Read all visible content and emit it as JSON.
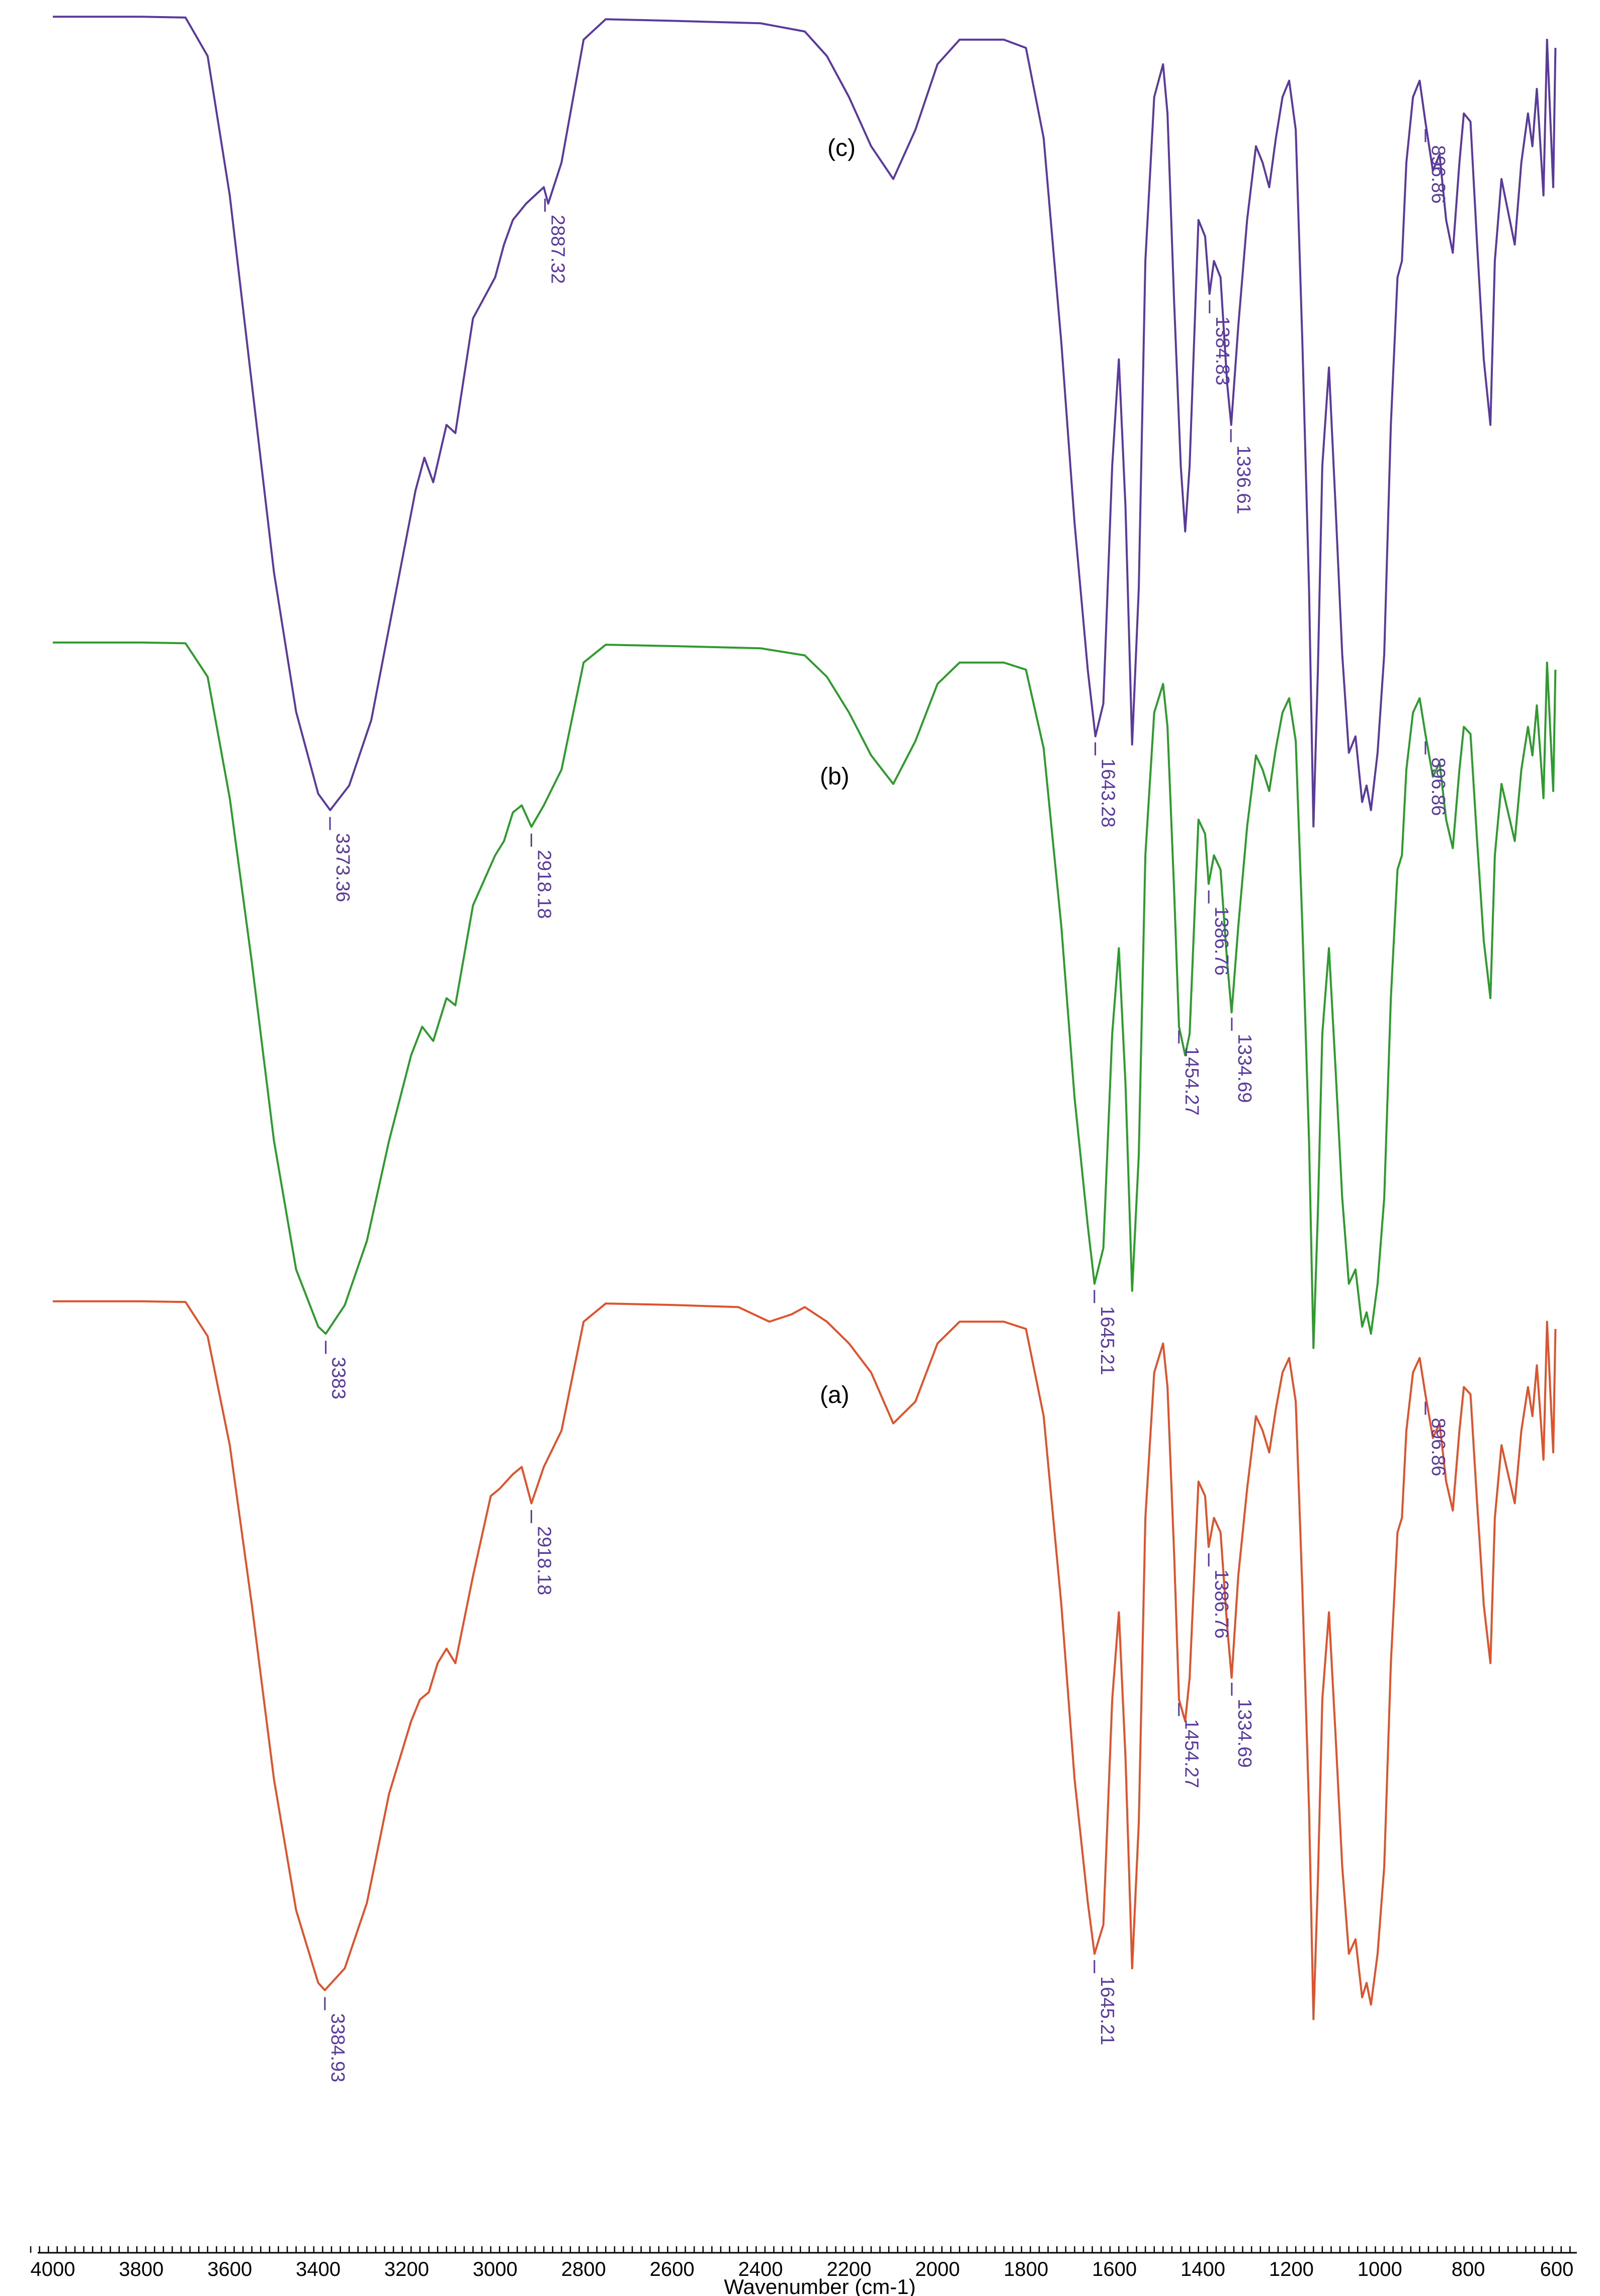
{
  "chart_data": {
    "type": "line",
    "title": "",
    "xlabel": "Wavenumber (cm-1)",
    "ylabel": "",
    "xlim": [
      4000,
      600
    ],
    "x_reversed": true,
    "x_ticks": [
      4000,
      3800,
      3600,
      3400,
      3200,
      3000,
      2800,
      2600,
      2400,
      2200,
      2000,
      1800,
      1600,
      1400,
      1200,
      1000,
      800,
      600
    ],
    "grid": false,
    "legend": "none",
    "series": [
      {
        "name": "(c)",
        "color": "#5b3a9e",
        "x": [
          4000,
          3900,
          3800,
          3700,
          3650,
          3600,
          3550,
          3500,
          3450,
          3400,
          3373,
          3330,
          3280,
          3230,
          3180,
          3160,
          3140,
          3110,
          3090,
          3050,
          3000,
          2980,
          2960,
          2930,
          2890,
          2880,
          2850,
          2830,
          2800,
          2750,
          2600,
          2400,
          2300,
          2250,
          2200,
          2150,
          2100,
          2050,
          2000,
          1950,
          1900,
          1850,
          1800,
          1760,
          1720,
          1690,
          1660,
          1643,
          1625,
          1605,
          1590,
          1575,
          1560,
          1545,
          1530,
          1510,
          1490,
          1480,
          1465,
          1450,
          1440,
          1430,
          1410,
          1395,
          1385,
          1375,
          1360,
          1345,
          1336,
          1320,
          1300,
          1280,
          1265,
          1250,
          1235,
          1220,
          1205,
          1190,
          1175,
          1160,
          1150,
          1140,
          1130,
          1115,
          1100,
          1085,
          1070,
          1055,
          1040,
          1030,
          1020,
          1005,
          990,
          975,
          960,
          950,
          940,
          925,
          910,
          897,
          880,
          865,
          850,
          835,
          820,
          810,
          795,
          780,
          765,
          750,
          740,
          725,
          710,
          695,
          680,
          665,
          655,
          645,
          638,
          630,
          622,
          615,
          608,
          603
        ],
        "y": [
          99.8,
          99.8,
          99.8,
          99.7,
          95,
          78,
          55,
          32,
          15,
          5,
          3,
          6,
          14,
          28,
          42,
          46,
          43,
          50,
          49,
          63,
          68,
          72,
          75,
          77,
          79,
          77,
          82,
          88,
          97,
          99.5,
          99.3,
          99,
          98,
          95,
          90,
          84,
          80,
          86,
          94,
          97,
          97,
          97,
          96,
          85,
          60,
          38,
          20,
          12,
          16,
          45,
          58,
          40,
          11,
          30,
          70,
          90,
          94,
          88,
          65,
          45,
          37,
          45,
          75,
          73,
          66,
          70,
          68,
          55,
          50,
          62,
          75,
          84,
          82,
          79,
          85,
          90,
          92,
          86,
          60,
          30,
          1,
          20,
          45,
          57,
          40,
          22,
          10,
          12,
          4,
          6,
          3,
          10,
          22,
          50,
          68,
          70,
          82,
          90,
          92,
          87,
          81,
          83,
          75,
          71,
          82,
          88,
          87,
          72,
          58,
          50,
          70,
          80,
          76,
          72,
          82,
          88,
          84,
          91,
          85,
          78,
          97,
          88,
          79,
          96
        ]
      },
      {
        "name": "(b)",
        "color": "#2e9b2e",
        "x": [
          4000,
          3900,
          3800,
          3700,
          3650,
          3600,
          3550,
          3500,
          3450,
          3400,
          3383,
          3340,
          3290,
          3240,
          3190,
          3165,
          3140,
          3110,
          3090,
          3050,
          3000,
          2980,
          2960,
          2940,
          2918,
          2890,
          2850,
          2830,
          2800,
          2750,
          2600,
          2400,
          2300,
          2250,
          2200,
          2150,
          2100,
          2050,
          2000,
          1950,
          1900,
          1850,
          1800,
          1760,
          1720,
          1690,
          1660,
          1645,
          1625,
          1605,
          1590,
          1575,
          1560,
          1545,
          1530,
          1510,
          1490,
          1480,
          1465,
          1454,
          1440,
          1430,
          1410,
          1395,
          1387,
          1375,
          1360,
          1345,
          1335,
          1320,
          1300,
          1280,
          1265,
          1250,
          1235,
          1220,
          1205,
          1190,
          1175,
          1160,
          1150,
          1140,
          1130,
          1115,
          1100,
          1085,
          1070,
          1055,
          1040,
          1030,
          1020,
          1005,
          990,
          975,
          960,
          950,
          940,
          925,
          910,
          897,
          880,
          865,
          850,
          835,
          820,
          810,
          795,
          780,
          765,
          750,
          740,
          725,
          710,
          695,
          680,
          665,
          655,
          645,
          638,
          630,
          622,
          615,
          608,
          603
        ],
        "y": [
          99.8,
          99.8,
          99.8,
          99.7,
          95,
          78,
          55,
          30,
          12,
          4,
          3,
          7,
          16,
          30,
          42,
          46,
          44,
          50,
          49,
          63,
          70,
          72,
          76,
          77,
          74,
          77,
          82,
          88,
          97,
          99.5,
          99.3,
          99,
          98,
          95,
          90,
          84,
          80,
          86,
          94,
          97,
          97,
          97,
          96,
          85,
          60,
          36,
          18,
          10,
          15,
          45,
          57,
          38,
          9,
          28,
          70,
          90,
          94,
          88,
          65,
          46,
          42,
          45,
          75,
          73,
          66,
          70,
          68,
          55,
          48,
          60,
          74,
          84,
          82,
          79,
          85,
          90,
          92,
          86,
          60,
          30,
          1,
          20,
          45,
          57,
          40,
          22,
          10,
          12,
          4,
          6,
          3,
          10,
          22,
          50,
          68,
          70,
          82,
          90,
          92,
          87,
          81,
          83,
          75,
          71,
          82,
          88,
          87,
          72,
          58,
          50,
          70,
          80,
          76,
          72,
          82,
          88,
          84,
          91,
          85,
          78,
          97,
          88,
          79,
          96
        ]
      },
      {
        "name": "(a)",
        "color": "#e0522c",
        "x": [
          4000,
          3900,
          3800,
          3700,
          3650,
          3600,
          3550,
          3500,
          3450,
          3400,
          3385,
          3340,
          3290,
          3240,
          3190,
          3170,
          3150,
          3130,
          3110,
          3090,
          3050,
          3010,
          2990,
          2960,
          2940,
          2918,
          2890,
          2850,
          2830,
          2800,
          2750,
          2600,
          2450,
          2380,
          2330,
          2300,
          2250,
          2200,
          2150,
          2100,
          2050,
          2000,
          1950,
          1900,
          1850,
          1800,
          1760,
          1720,
          1690,
          1660,
          1645,
          1625,
          1605,
          1590,
          1575,
          1560,
          1545,
          1530,
          1510,
          1490,
          1480,
          1465,
          1454,
          1440,
          1430,
          1410,
          1395,
          1387,
          1375,
          1360,
          1345,
          1335,
          1320,
          1300,
          1280,
          1265,
          1250,
          1235,
          1220,
          1205,
          1190,
          1175,
          1160,
          1150,
          1140,
          1130,
          1115,
          1100,
          1085,
          1070,
          1055,
          1040,
          1030,
          1020,
          1005,
          990,
          975,
          960,
          950,
          940,
          925,
          910,
          897,
          880,
          865,
          850,
          835,
          820,
          810,
          795,
          780,
          765,
          750,
          740,
          725,
          710,
          695,
          680,
          665,
          655,
          645,
          638,
          630,
          622,
          615,
          608,
          603
        ],
        "y": [
          99.8,
          99.8,
          99.8,
          99.7,
          95,
          80,
          58,
          34,
          16,
          6,
          5,
          8,
          17,
          32,
          42,
          45,
          46,
          50,
          52,
          50,
          62,
          73,
          74,
          76,
          77,
          72,
          77,
          82,
          88,
          97,
          99.5,
          99.3,
          99,
          97,
          98,
          99,
          97,
          94,
          90,
          83,
          86,
          94,
          97,
          97,
          97,
          96,
          84,
          58,
          34,
          17,
          10,
          14,
          45,
          57,
          37,
          8,
          28,
          70,
          90,
          94,
          88,
          65,
          45,
          42,
          48,
          75,
          73,
          66,
          70,
          68,
          55,
          48,
          62,
          74,
          84,
          82,
          79,
          85,
          90,
          92,
          86,
          60,
          30,
          1,
          20,
          45,
          57,
          40,
          22,
          10,
          12,
          4,
          6,
          3,
          10,
          22,
          50,
          68,
          70,
          82,
          90,
          92,
          87,
          81,
          83,
          75,
          71,
          82,
          88,
          87,
          72,
          58,
          50,
          70,
          80,
          76,
          72,
          82,
          88,
          84,
          91,
          85,
          78,
          97,
          88,
          79,
          96
        ]
      }
    ],
    "annotations": [
      {
        "series": "(c)",
        "x": 2887.32,
        "text": "2887.32"
      },
      {
        "series": "(c)",
        "x": 1384.83,
        "text": "1384.83"
      },
      {
        "series": "(c)",
        "x": 1336.61,
        "text": "1336.61"
      },
      {
        "series": "(c)",
        "x": 896.86,
        "text": "896.86"
      },
      {
        "series": "(c)",
        "x": 1643.28,
        "text": "1643.28"
      },
      {
        "series": "(c)",
        "x": 3373.36,
        "text": "3373.36"
      },
      {
        "series": "(b)",
        "x": 2918.18,
        "text": "2918.18"
      },
      {
        "series": "(b)",
        "x": 1386.76,
        "text": "1386.76"
      },
      {
        "series": "(b)",
        "x": 1334.69,
        "text": "1334.69"
      },
      {
        "series": "(b)",
        "x": 1454.27,
        "text": "1454.27"
      },
      {
        "series": "(b)",
        "x": 896.86,
        "text": "896.86"
      },
      {
        "series": "(b)",
        "x": 1645.21,
        "text": "1645.21"
      },
      {
        "series": "(b)",
        "x": 3383,
        "text": "3383"
      },
      {
        "series": "(a)",
        "x": 2918.18,
        "text": "2918.18"
      },
      {
        "series": "(a)",
        "x": 1386.76,
        "text": "1386.76"
      },
      {
        "series": "(a)",
        "x": 1334.69,
        "text": "1334.69"
      },
      {
        "series": "(a)",
        "x": 1454.27,
        "text": "1454.27"
      },
      {
        "series": "(a)",
        "x": 896.86,
        "text": "896.86"
      },
      {
        "series": "(a)",
        "x": 1645.21,
        "text": "1645.21"
      },
      {
        "series": "(a)",
        "x": 3384.93,
        "text": "3384.93"
      }
    ]
  }
}
